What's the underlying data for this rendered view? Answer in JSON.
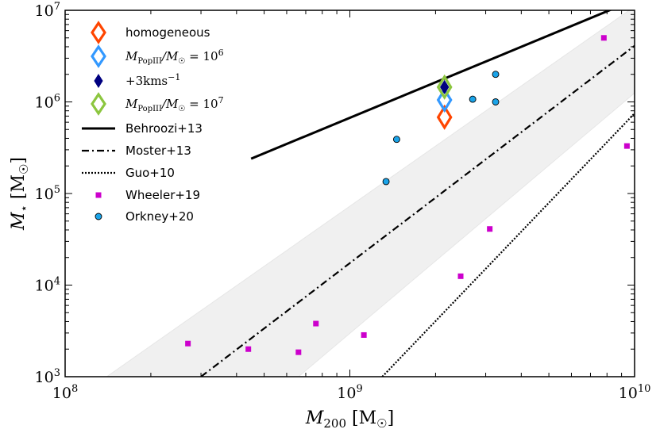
{
  "chart_data": {
    "type": "scatter",
    "title": "",
    "xlabel": {
      "main": "M",
      "sub": "200",
      "unit": "[M",
      "unit_sub": "☉",
      "unit_close": "]"
    },
    "ylabel": {
      "main": "M",
      "sub": "⋆",
      "unit": "[M",
      "unit_sub": "☉",
      "unit_close": "]"
    },
    "x_scale": "log",
    "y_scale": "log",
    "xlim": [
      100000000,
      10000000000
    ],
    "ylim": [
      1000,
      10000000
    ],
    "x_ticks": [
      {
        "value": 100000000,
        "base": "10",
        "exp": "8"
      },
      {
        "value": 1000000000,
        "base": "10",
        "exp": "9"
      },
      {
        "value": 10000000000,
        "base": "10",
        "exp": "10"
      }
    ],
    "y_ticks": [
      {
        "value": 1000,
        "base": "10",
        "exp": "3"
      },
      {
        "value": 10000,
        "base": "10",
        "exp": "4"
      },
      {
        "value": 100000,
        "base": "10",
        "exp": "5"
      },
      {
        "value": 1000000,
        "base": "10",
        "exp": "6"
      },
      {
        "value": 10000000,
        "base": "10",
        "exp": "7"
      }
    ],
    "grid": false,
    "legend_position": "top-left",
    "legend": [
      {
        "key": "homogeneous",
        "kind": "diamond",
        "color": "#ff4500",
        "filled": false,
        "label": "homogeneous"
      },
      {
        "key": "popiii6",
        "kind": "diamond",
        "color": "#3399ff",
        "filled": false,
        "label_math": {
          "m": "M",
          "sub1": "PopIII",
          "mid": "/M",
          "sub2": "☉",
          "eq": " = 10",
          "sup": "6"
        }
      },
      {
        "key": "kms",
        "kind": "diamond",
        "color": "#000080",
        "filled": true,
        "label_math": {
          "pre": "+3kms",
          "sup": "−1"
        }
      },
      {
        "key": "popiii7",
        "kind": "diamond",
        "color": "#8cc63f",
        "filled": false,
        "label_math": {
          "m": "M",
          "sub1": "PopIII",
          "mid": "/M",
          "sub2": "☉",
          "eq": " = 10",
          "sup": "7"
        }
      },
      {
        "key": "behroozi",
        "kind": "line",
        "dash": "solid",
        "color": "#000000",
        "label": "Behroozi+13"
      },
      {
        "key": "moster",
        "kind": "line",
        "dash": "dashdot",
        "color": "#000000",
        "label": "Moster+13"
      },
      {
        "key": "guo",
        "kind": "line",
        "dash": "dotted",
        "color": "#000000",
        "label": "Guo+10"
      },
      {
        "key": "wheeler",
        "kind": "square",
        "color": "#cc00cc",
        "label": "Wheeler+19"
      },
      {
        "key": "orkney",
        "kind": "circle",
        "color": "#1aa3e8",
        "label": "Orkney+20"
      }
    ],
    "series": [
      {
        "key": "homogeneous",
        "points": [
          {
            "x": 2150000000,
            "y": 680000
          }
        ]
      },
      {
        "key": "popiii6",
        "points": [
          {
            "x": 2150000000,
            "y": 1050000
          }
        ]
      },
      {
        "key": "kms",
        "points": [
          {
            "x": 2150000000,
            "y": 1450000
          }
        ]
      },
      {
        "key": "popiii7",
        "points": [
          {
            "x": 2150000000,
            "y": 1450000
          }
        ]
      },
      {
        "key": "wheeler",
        "points": [
          {
            "x": 270000000,
            "y": 2300
          },
          {
            "x": 440000000,
            "y": 2000
          },
          {
            "x": 660000000,
            "y": 1850
          },
          {
            "x": 760000000,
            "y": 3800
          },
          {
            "x": 1120000000,
            "y": 2850
          },
          {
            "x": 2450000000,
            "y": 12500
          },
          {
            "x": 3100000000,
            "y": 41000
          },
          {
            "x": 7800000000,
            "y": 5000000
          },
          {
            "x": 9400000000,
            "y": 330000
          }
        ]
      },
      {
        "key": "orkney",
        "points": [
          {
            "x": 1340000000,
            "y": 135000
          },
          {
            "x": 1460000000,
            "y": 390000
          },
          {
            "x": 2700000000,
            "y": 1070000
          },
          {
            "x": 3250000000,
            "y": 2000000
          },
          {
            "x": 3250000000,
            "y": 1000000
          }
        ]
      }
    ],
    "relations": [
      {
        "key": "behroozi",
        "points": [
          {
            "x": 450000000,
            "y": 240000
          },
          {
            "x": 10000000000,
            "y": 13000000
          }
        ]
      },
      {
        "key": "moster",
        "points": [
          {
            "x": 300000000,
            "y": 1000
          },
          {
            "x": 10000000000,
            "y": 4100000
          }
        ]
      },
      {
        "key": "guo",
        "points": [
          {
            "x": 1300000000,
            "y": 1000
          },
          {
            "x": 10000000000,
            "y": 750000
          }
        ]
      }
    ],
    "scatter_band": {
      "color": "#f0f0f0",
      "upper": [
        {
          "x": 140000000,
          "y": 1000
        },
        {
          "x": 10000000000,
          "y": 11000000
        }
      ],
      "lower": [
        {
          "x": 660000000,
          "y": 1000
        },
        {
          "x": 10000000000,
          "y": 1250000
        }
      ]
    }
  }
}
